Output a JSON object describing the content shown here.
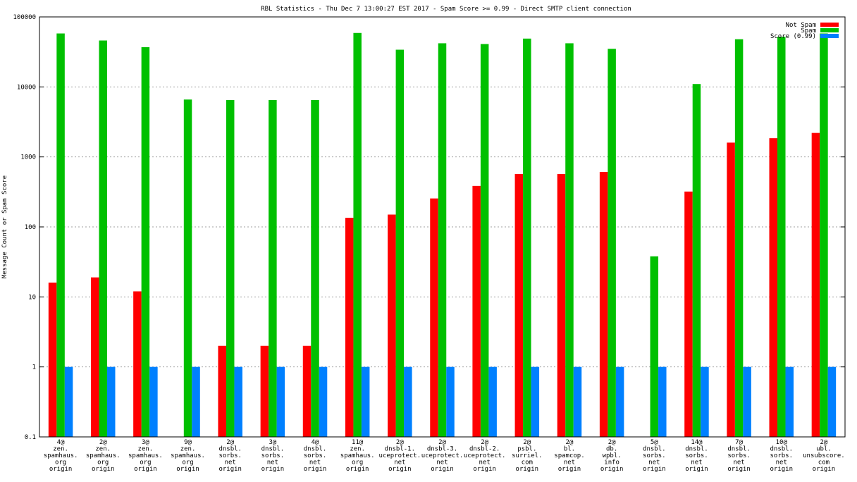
{
  "chart_data": {
    "type": "bar",
    "title": "RBL Statistics - Thu Dec  7 13:00:27 EST 2017 - Spam Score >= 0.99 - Direct SMTP client connection",
    "ylabel": "Message Count or Spam Score",
    "xlabel": "",
    "yscale": "log",
    "ylim": [
      0.1,
      100000
    ],
    "grid": true,
    "legend_position": "top-right",
    "yticks": [
      "0.1",
      "1",
      "10",
      "100",
      "1000",
      "10000",
      "100000"
    ],
    "categories": [
      [
        "4@",
        "zen.",
        "spamhaus.",
        "org",
        "origin"
      ],
      [
        "2@",
        "zen.",
        "spamhaus.",
        "org",
        "origin"
      ],
      [
        "3@",
        "zen.",
        "spamhaus.",
        "org",
        "origin"
      ],
      [
        "9@",
        "zen.",
        "spamhaus.",
        "org",
        "origin"
      ],
      [
        "2@",
        "dnsbl.",
        "sorbs.",
        "net",
        "origin"
      ],
      [
        "3@",
        "dnsbl.",
        "sorbs.",
        "net",
        "origin"
      ],
      [
        "4@",
        "dnsbl.",
        "sorbs.",
        "net",
        "origin"
      ],
      [
        "11@",
        "zen.",
        "spamhaus.",
        "org",
        "origin"
      ],
      [
        "2@",
        "dnsbl-1.",
        "uceprotect.",
        "net",
        "origin"
      ],
      [
        "2@",
        "dnsbl-3.",
        "uceprotect.",
        "net",
        "origin"
      ],
      [
        "2@",
        "dnsbl-2.",
        "uceprotect.",
        "net",
        "origin"
      ],
      [
        "2@",
        "psbl.",
        "surriel.",
        "com",
        "origin"
      ],
      [
        "2@",
        "bl.",
        "spamcop.",
        "net",
        "origin"
      ],
      [
        "2@",
        "db.",
        "wpbl.",
        "info",
        "origin"
      ],
      [
        "5@",
        "dnsbl.",
        "sorbs.",
        "net",
        "origin"
      ],
      [
        "14@",
        "dnsbl.",
        "sorbs.",
        "net",
        "origin"
      ],
      [
        "7@",
        "dnsbl.",
        "sorbs.",
        "net",
        "origin"
      ],
      [
        "10@",
        "dnsbl.",
        "sorbs.",
        "net",
        "origin"
      ],
      [
        "2@",
        "ubl.",
        "unsubscore.",
        "com",
        "origin"
      ]
    ],
    "series": [
      {
        "name": "Not Spam",
        "color": "#ff0000",
        "values": [
          16,
          19,
          12,
          null,
          2,
          2,
          2,
          135,
          150,
          255,
          385,
          570,
          570,
          610,
          null,
          320,
          1600,
          1850,
          2200
        ]
      },
      {
        "name": "Spam",
        "color": "#00c000",
        "values": [
          58000,
          46000,
          37000,
          6600,
          6500,
          6500,
          6500,
          59000,
          34000,
          42000,
          41000,
          49000,
          42000,
          35000,
          38,
          11000,
          48000,
          52000,
          58000
        ]
      },
      {
        "name": "Score (0.99)",
        "color": "#0080ff",
        "values": [
          1,
          1,
          1,
          1,
          1,
          1,
          1,
          1,
          1,
          1,
          1,
          1,
          1,
          1,
          1,
          1,
          1,
          1,
          1
        ]
      }
    ]
  }
}
